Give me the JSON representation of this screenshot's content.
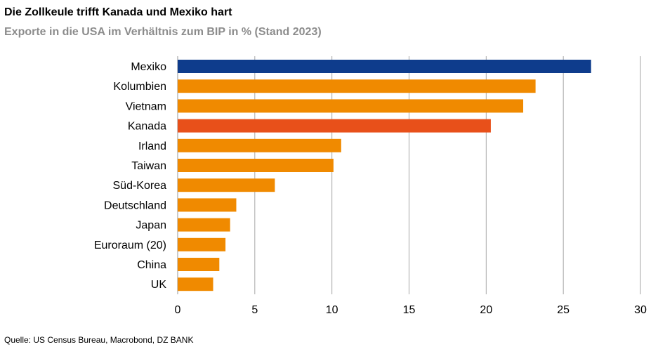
{
  "title": "Die Zollkeule trifft Kanada und Mexiko hart",
  "subtitle": "Exporte in die USA im Verhältnis zum BIP in % (Stand 2023)",
  "source": "Quelle: US Census Bureau, Macrobond, DZ BANK",
  "colors": {
    "mexiko": "#0e3c8c",
    "kanada": "#e8501a",
    "default": "#f08a00",
    "grid": "#a6a6a6"
  },
  "chart_data": {
    "type": "bar",
    "orientation": "horizontal",
    "categories": [
      "Mexiko",
      "Kolumbien",
      "Vietnam",
      "Kanada",
      "Irland",
      "Taiwan",
      "Süd-Korea",
      "Deutschland",
      "Japan",
      "Euroraum (20)",
      "China",
      "UK"
    ],
    "values": [
      26.8,
      23.2,
      22.4,
      20.3,
      10.6,
      10.1,
      6.3,
      3.8,
      3.4,
      3.1,
      2.7,
      2.3
    ],
    "bar_colors": [
      "#0e3c8c",
      "#f08a00",
      "#f08a00",
      "#e8501a",
      "#f08a00",
      "#f08a00",
      "#f08a00",
      "#f08a00",
      "#f08a00",
      "#f08a00",
      "#f08a00",
      "#f08a00"
    ],
    "xlim": [
      0,
      30
    ],
    "xticks": [
      0,
      5,
      10,
      15,
      20,
      25,
      30
    ],
    "grid": "vertical",
    "legend": "none"
  }
}
